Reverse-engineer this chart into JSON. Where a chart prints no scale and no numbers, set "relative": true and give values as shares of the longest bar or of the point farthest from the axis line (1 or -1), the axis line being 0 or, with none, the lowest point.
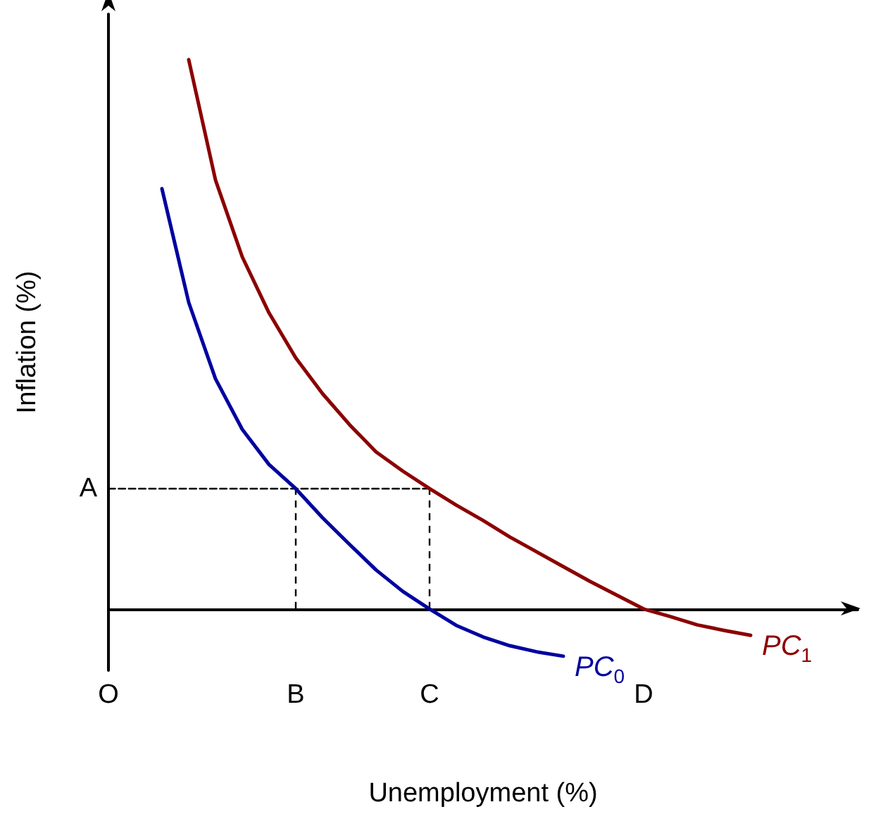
{
  "chart_data": {
    "type": "line",
    "relative": true,
    "xlabel": "Unemployment (%)",
    "ylabel": "Inflation (%)",
    "categories": [
      "O",
      null,
      null,
      null,
      null,
      null,
      null,
      "B",
      null,
      null,
      null,
      null,
      "C",
      null,
      null,
      null,
      null,
      null,
      null,
      null,
      "D",
      null,
      null,
      null,
      null,
      null,
      null,
      null,
      null
    ],
    "annotations": [
      "A"
    ],
    "ref_lines": [
      {
        "axis": "x",
        "value": "B",
        "color": "#000000",
        "line_style": "dashed"
      },
      {
        "axis": "x",
        "value": "C",
        "color": "#000000",
        "line_style": "dashed"
      }
    ],
    "marker": "none",
    "series": [
      {
        "name": "PC$_{0}$",
        "color": "#0000a0",
        "values": [
          null,
          null,
          0.765,
          0.558,
          0.419,
          0.327,
          0.263,
          0.219,
          0.166,
          0.118,
          0.071,
          0.032,
          0,
          -0.03,
          -0.051,
          -0.067,
          -0.078,
          -0.086,
          null,
          null,
          null,
          null,
          null,
          null,
          null,
          null,
          null,
          null,
          null
        ]
      },
      {
        "name": "PC$_{1}$",
        "color": "#8b0000",
        "values": [
          null,
          null,
          null,
          1,
          0.781,
          0.641,
          0.539,
          0.457,
          0.392,
          0.336,
          0.286,
          0.251,
          0.219,
          0.189,
          0.161,
          0.131,
          0.104,
          0.077,
          0.05,
          0.025,
          0,
          -0.014,
          -0.029,
          -0.039,
          -0.048,
          null,
          null,
          null,
          null
        ]
      },
      {
        "color": "#000000",
        "line_style": "dashed",
        "values": [
          0.219,
          0.219,
          0.219,
          0.219,
          0.219,
          0.219,
          0.219,
          0.219,
          0.219,
          0.219,
          0.219,
          0.219,
          0.219,
          null,
          null,
          null,
          null,
          null,
          null,
          null,
          null,
          null,
          null,
          null,
          null,
          null,
          null,
          null,
          null
        ]
      }
    ]
  }
}
